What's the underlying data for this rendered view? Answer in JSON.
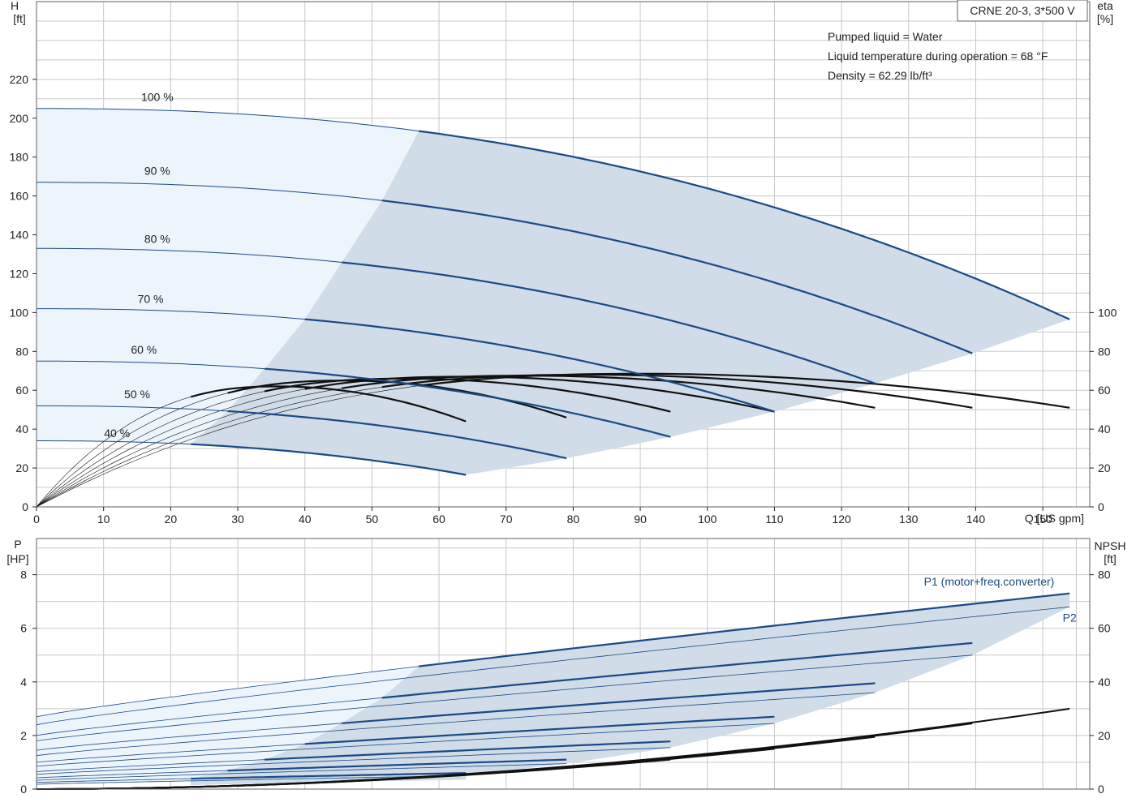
{
  "chart_data": [
    {
      "type": "line",
      "name": "head_and_efficiency",
      "title": "CRNE 20-3, 3*500 V",
      "notes": [
        "Pumped liquid = Water",
        "Liquid temperature during operation = 68 °F",
        "Density = 62.29 lb/ft³"
      ],
      "xlabel": "Q [US gpm]",
      "xlim": [
        0,
        157
      ],
      "x_ticks": [
        0,
        10,
        20,
        30,
        40,
        50,
        60,
        70,
        80,
        90,
        100,
        110,
        120,
        130,
        140,
        150
      ],
      "ylabel_left": [
        "H",
        "[ft]"
      ],
      "ylim_left": [
        0,
        260
      ],
      "y_ticks_left": [
        0,
        20,
        40,
        60,
        80,
        100,
        120,
        140,
        160,
        180,
        200,
        220
      ],
      "ylabel_right": [
        "eta",
        "[%]"
      ],
      "ylim_right": [
        0,
        260
      ],
      "y_ticks_right": [
        0,
        20,
        40,
        60,
        80,
        100
      ],
      "grid": true,
      "colors": {
        "operating_area": "#d0dce7",
        "low_flow_area": "#ecf5fc",
        "head_curve": "#1a4a85",
        "eff_curve": "#111111",
        "grid": "#c8c8c8"
      },
      "speed_labels": [
        {
          "text": "100 %",
          "x": 18,
          "y": 211
        },
        {
          "text": "90 %",
          "x": 18,
          "y": 173
        },
        {
          "text": "80 %",
          "x": 18,
          "y": 138
        },
        {
          "text": "70 %",
          "x": 17,
          "y": 107
        },
        {
          "text": "60 %",
          "x": 16,
          "y": 81
        },
        {
          "text": "50 %",
          "x": 15,
          "y": 58
        },
        {
          "text": "40 %",
          "x": 12,
          "y": 38
        }
      ],
      "head_curves": [
        {
          "speed": "100 %",
          "H0": 205,
          "qmax": 154,
          "Hend": 96.5,
          "qmin": 57
        },
        {
          "speed": "90 %",
          "H0": 167,
          "qmax": 139.5,
          "Hend": 79,
          "qmin": 51.5
        },
        {
          "speed": "80 %",
          "H0": 133,
          "qmax": 125,
          "Hend": 63.5,
          "qmin": 45.5
        },
        {
          "speed": "70 %",
          "H0": 102,
          "qmax": 110,
          "Hend": 49,
          "qmin": 40
        },
        {
          "speed": "60 %",
          "H0": 75,
          "qmax": 94.5,
          "Hend": 36,
          "qmin": 34
        },
        {
          "speed": "50 %",
          "H0": 52,
          "qmax": 79,
          "Hend": 25,
          "qmin": 28.5
        },
        {
          "speed": "40 %",
          "H0": 34,
          "qmax": 64,
          "Hend": 16.5,
          "qmin": 23
        }
      ],
      "efficiency_curves": [
        {
          "speed": "100 %",
          "qmax": 154,
          "eta_max": 68.5,
          "q_peak": 90,
          "eta_end": 51
        },
        {
          "speed": "90 %",
          "qmax": 139.5,
          "eta_max": 68,
          "q_peak": 82,
          "eta_end": 51
        },
        {
          "speed": "80 %",
          "qmax": 125,
          "eta_max": 67.5,
          "q_peak": 73,
          "eta_end": 51
        },
        {
          "speed": "70 %",
          "qmax": 110,
          "eta_max": 67,
          "q_peak": 64,
          "eta_end": 49
        },
        {
          "speed": "60 %",
          "qmax": 94.5,
          "eta_max": 66,
          "q_peak": 55,
          "eta_end": 49
        },
        {
          "speed": "50 %",
          "qmax": 79,
          "eta_max": 65,
          "q_peak": 46,
          "eta_end": 46
        },
        {
          "speed": "40 %",
          "qmax": 64,
          "eta_max": 62,
          "q_peak": 36,
          "eta_end": 44
        }
      ]
    },
    {
      "type": "line",
      "name": "power_and_npsh",
      "xlim": [
        0,
        157
      ],
      "ylabel_left": [
        "P",
        "[HP]"
      ],
      "ylim_left": [
        0,
        9.35
      ],
      "y_ticks_left": [
        0,
        2,
        4,
        6,
        8
      ],
      "ylabel_right": [
        "NPSH",
        "[ft]"
      ],
      "ylim_right": [
        0,
        93.5
      ],
      "y_ticks_right": [
        0,
        20,
        40,
        60,
        80
      ],
      "grid": true,
      "series_labels": [
        {
          "text": "P1 (motor+freq.converter)",
          "x": 142,
          "y": 7.75,
          "color": "#1a4a85"
        },
        {
          "text": "P2",
          "x": 154,
          "y": 6.4,
          "color": "#1a4a85"
        }
      ],
      "power_curves": [
        {
          "speed": "100 %",
          "P1_0": 2.7,
          "P1_end": 7.3,
          "P2_0": 2.4,
          "P2_end": 6.8,
          "qmin": 57,
          "qmax": 154
        },
        {
          "speed": "90 %",
          "P1_0": 2.0,
          "P1_end": 5.45,
          "P2_0": 1.8,
          "P2_end": 5.0,
          "qmin": 51.5,
          "qmax": 139.5
        },
        {
          "speed": "80 %",
          "P1_0": 1.45,
          "P1_end": 3.95,
          "P2_0": 1.25,
          "P2_end": 3.6,
          "qmin": 45.5,
          "qmax": 125
        },
        {
          "speed": "70 %",
          "P1_0": 1.0,
          "P1_end": 2.7,
          "P2_0": 0.85,
          "P2_end": 2.45,
          "qmin": 40,
          "qmax": 110
        },
        {
          "speed": "60 %",
          "P1_0": 0.65,
          "P1_end": 1.78,
          "P2_0": 0.55,
          "P2_end": 1.55,
          "qmin": 34,
          "qmax": 94.5
        },
        {
          "speed": "50 %",
          "P1_0": 0.42,
          "P1_end": 1.1,
          "P2_0": 0.33,
          "P2_end": 0.95,
          "qmin": 28.5,
          "qmax": 79
        },
        {
          "speed": "40 %",
          "P1_0": 0.25,
          "P1_end": 0.6,
          "P2_0": 0.18,
          "P2_end": 0.5,
          "qmin": 23,
          "qmax": 64
        }
      ],
      "npsh_curves": [
        {
          "speed": "100 %",
          "qmax": 154,
          "npsh_end": 30
        },
        {
          "speed": "90 %",
          "qmax": 139.5,
          "npsh_end": 24.5
        },
        {
          "speed": "80 %",
          "qmax": 125,
          "npsh_end": 19.5
        },
        {
          "speed": "70 %",
          "qmax": 110,
          "npsh_end": 15
        },
        {
          "speed": "60 %",
          "qmax": 94.5,
          "npsh_end": 11
        },
        {
          "speed": "50 %",
          "qmax": 79,
          "npsh_end": 8
        },
        {
          "speed": "40 %",
          "qmax": 64,
          "npsh_end": 5.5
        }
      ]
    }
  ]
}
